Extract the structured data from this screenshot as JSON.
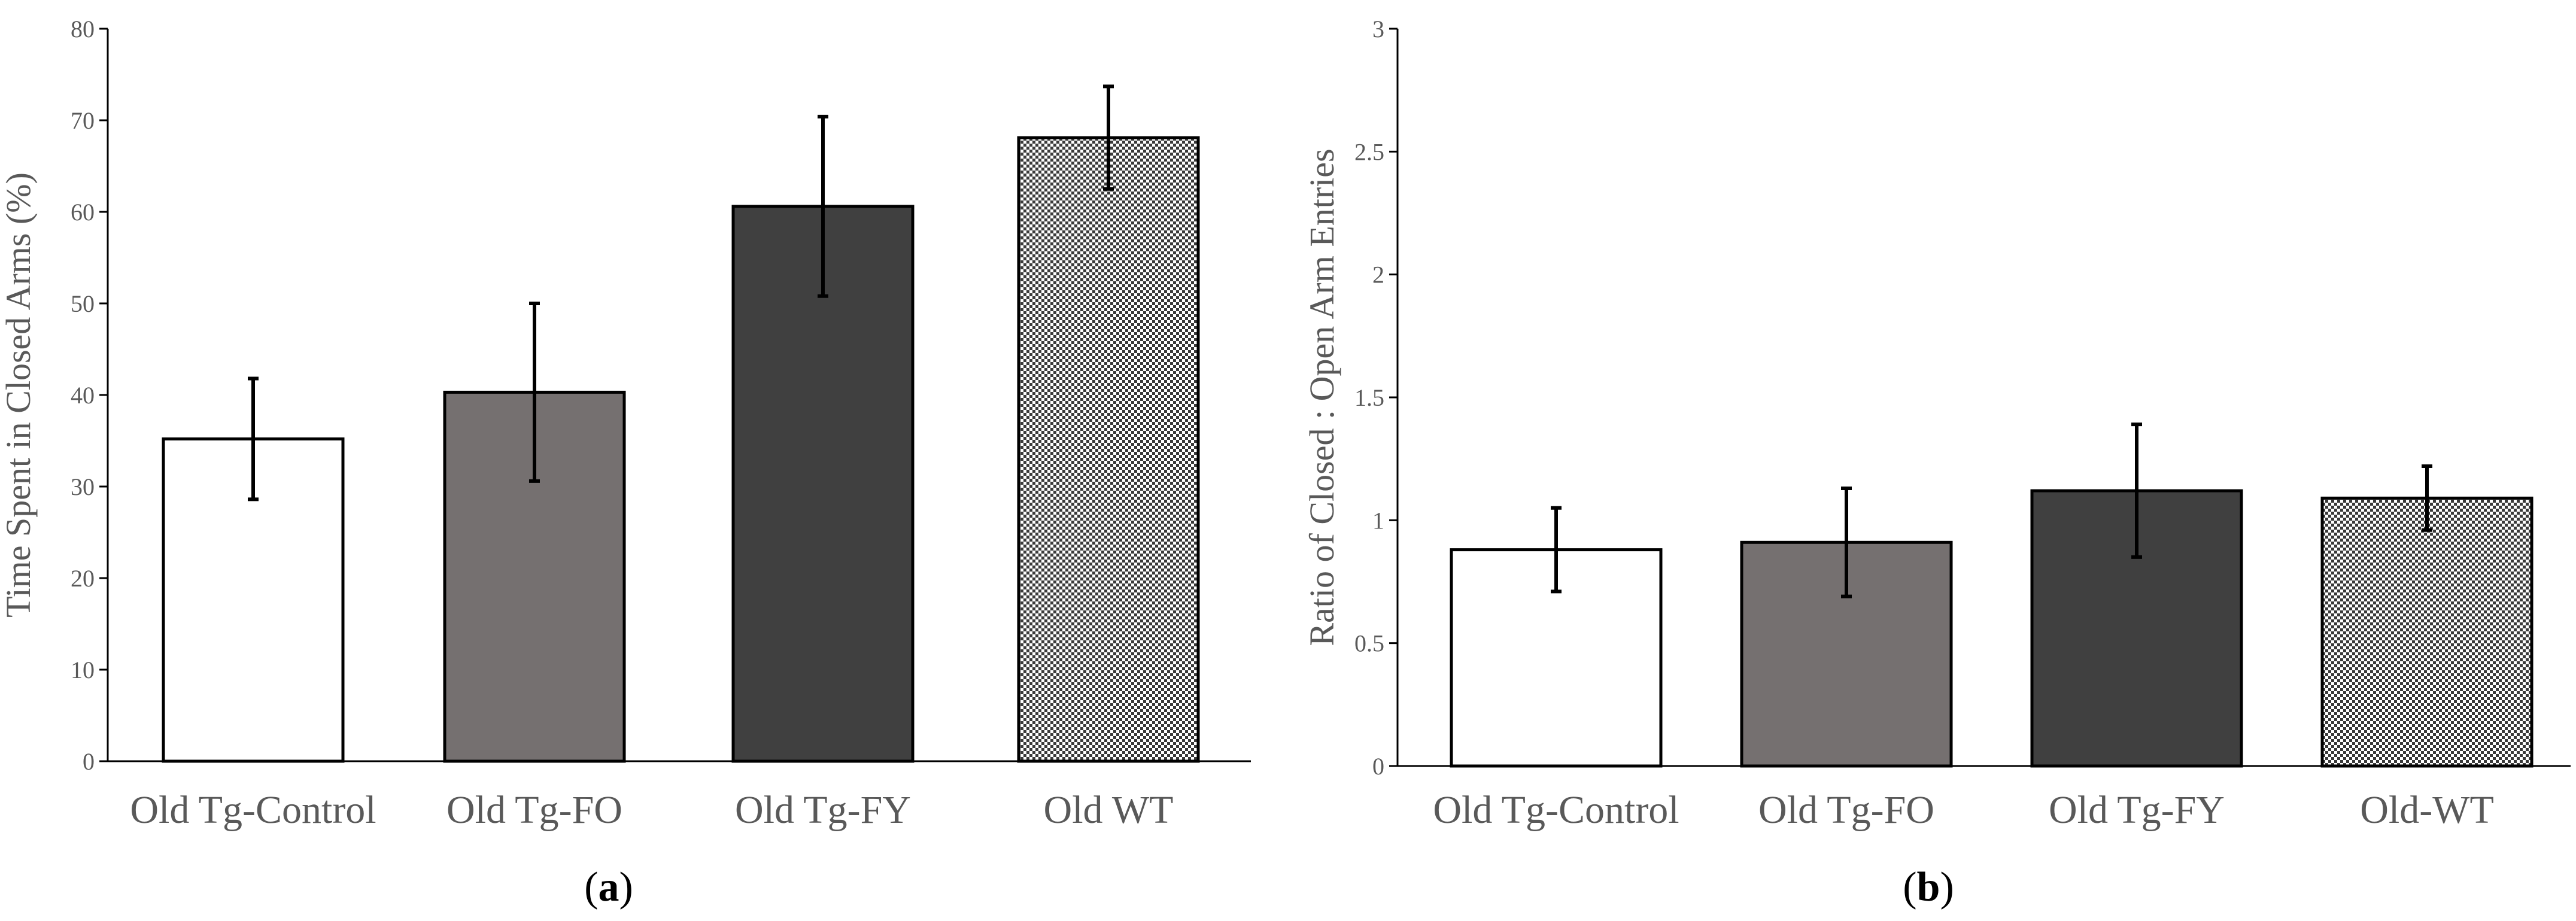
{
  "chart_data": [
    {
      "type": "bar",
      "panel_label": "a",
      "title": "",
      "xlabel": "",
      "ylabel": "Time Spent in Closed Arms (%)",
      "ylim": [
        0,
        80
      ],
      "yticks": [
        0,
        10,
        20,
        30,
        40,
        50,
        60,
        70,
        80
      ],
      "ytick_labels": [
        "0",
        "10",
        "20",
        "30",
        "40",
        "50",
        "60",
        "70",
        "80"
      ],
      "categories": [
        "Old Tg-Control",
        "Old Tg-FO",
        "Old Tg-FY",
        "Old WT"
      ],
      "values": [
        35.2,
        40.3,
        60.6,
        68.1
      ],
      "errors": [
        6.6,
        9.7,
        9.8,
        5.6
      ],
      "fills": [
        "#ffffff",
        "#757070",
        "#404040",
        "pattern"
      ],
      "grid": false,
      "legend": "none"
    },
    {
      "type": "bar",
      "panel_label": "b",
      "title": "",
      "xlabel": "",
      "ylabel": "Ratio of Closed : Open Arm Entries",
      "ylim": [
        0,
        3
      ],
      "yticks": [
        0,
        0.5,
        1,
        1.5,
        2,
        2.5,
        3
      ],
      "ytick_labels": [
        "0",
        "0.5",
        "1",
        "1.5",
        "2",
        "2.5",
        "3"
      ],
      "categories": [
        "Old Tg-Control",
        "Old Tg-FO",
        "Old Tg-FY",
        "Old-WT"
      ],
      "values": [
        0.88,
        0.91,
        1.12,
        1.09
      ],
      "errors": [
        0.17,
        0.22,
        0.27,
        0.13
      ],
      "fills": [
        "#ffffff",
        "#757070",
        "#404040",
        "pattern"
      ],
      "grid": false,
      "legend": "none"
    }
  ]
}
